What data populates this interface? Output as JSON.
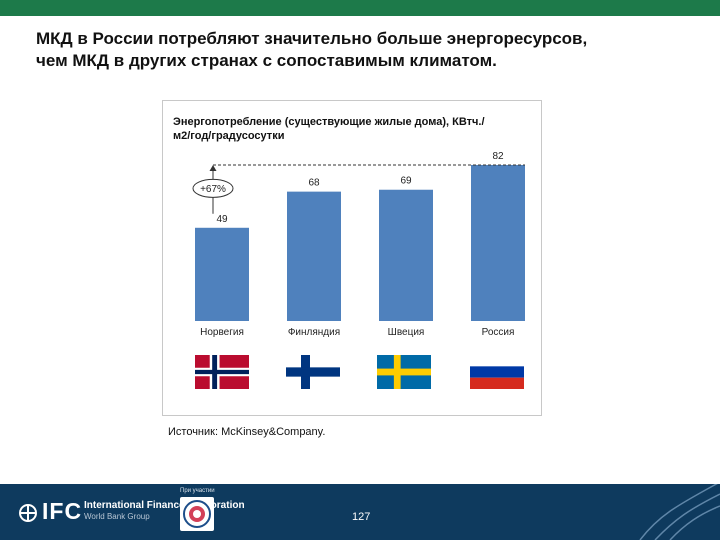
{
  "slide": {
    "title_line1": "МКД в России потребляют значительно больше энергоресурсов,",
    "title_line2": "чем МКД в других странах с сопоставимым климатом.",
    "source": "Источник: McKinsey&Company.",
    "page_number": "127"
  },
  "footer": {
    "brand": "IFC",
    "org_name": "International Finance Corporation",
    "org_subtitle": "World Bank Group",
    "partner_label": "При участии"
  },
  "colors": {
    "bar": "#4f81bd",
    "header_bar": "#1d7a4a",
    "footer": "#0e3a5e"
  },
  "chart_data": {
    "type": "bar",
    "title": "Энергопотребление (существующие жилые дома), КВтч./м2/год/градусосутки",
    "categories": [
      "Норвегия",
      "Финляндия",
      "Швеция",
      "Россия"
    ],
    "values": [
      49,
      68,
      69,
      82
    ],
    "ylim": [
      0,
      82
    ],
    "grid": false,
    "annotations": [
      {
        "text": "+67%",
        "from_category": "Норвегия",
        "to_category": "Россия"
      }
    ],
    "flags": [
      "norway-flag-icon",
      "finland-flag-icon",
      "sweden-flag-icon",
      "russia-flag-icon"
    ]
  }
}
